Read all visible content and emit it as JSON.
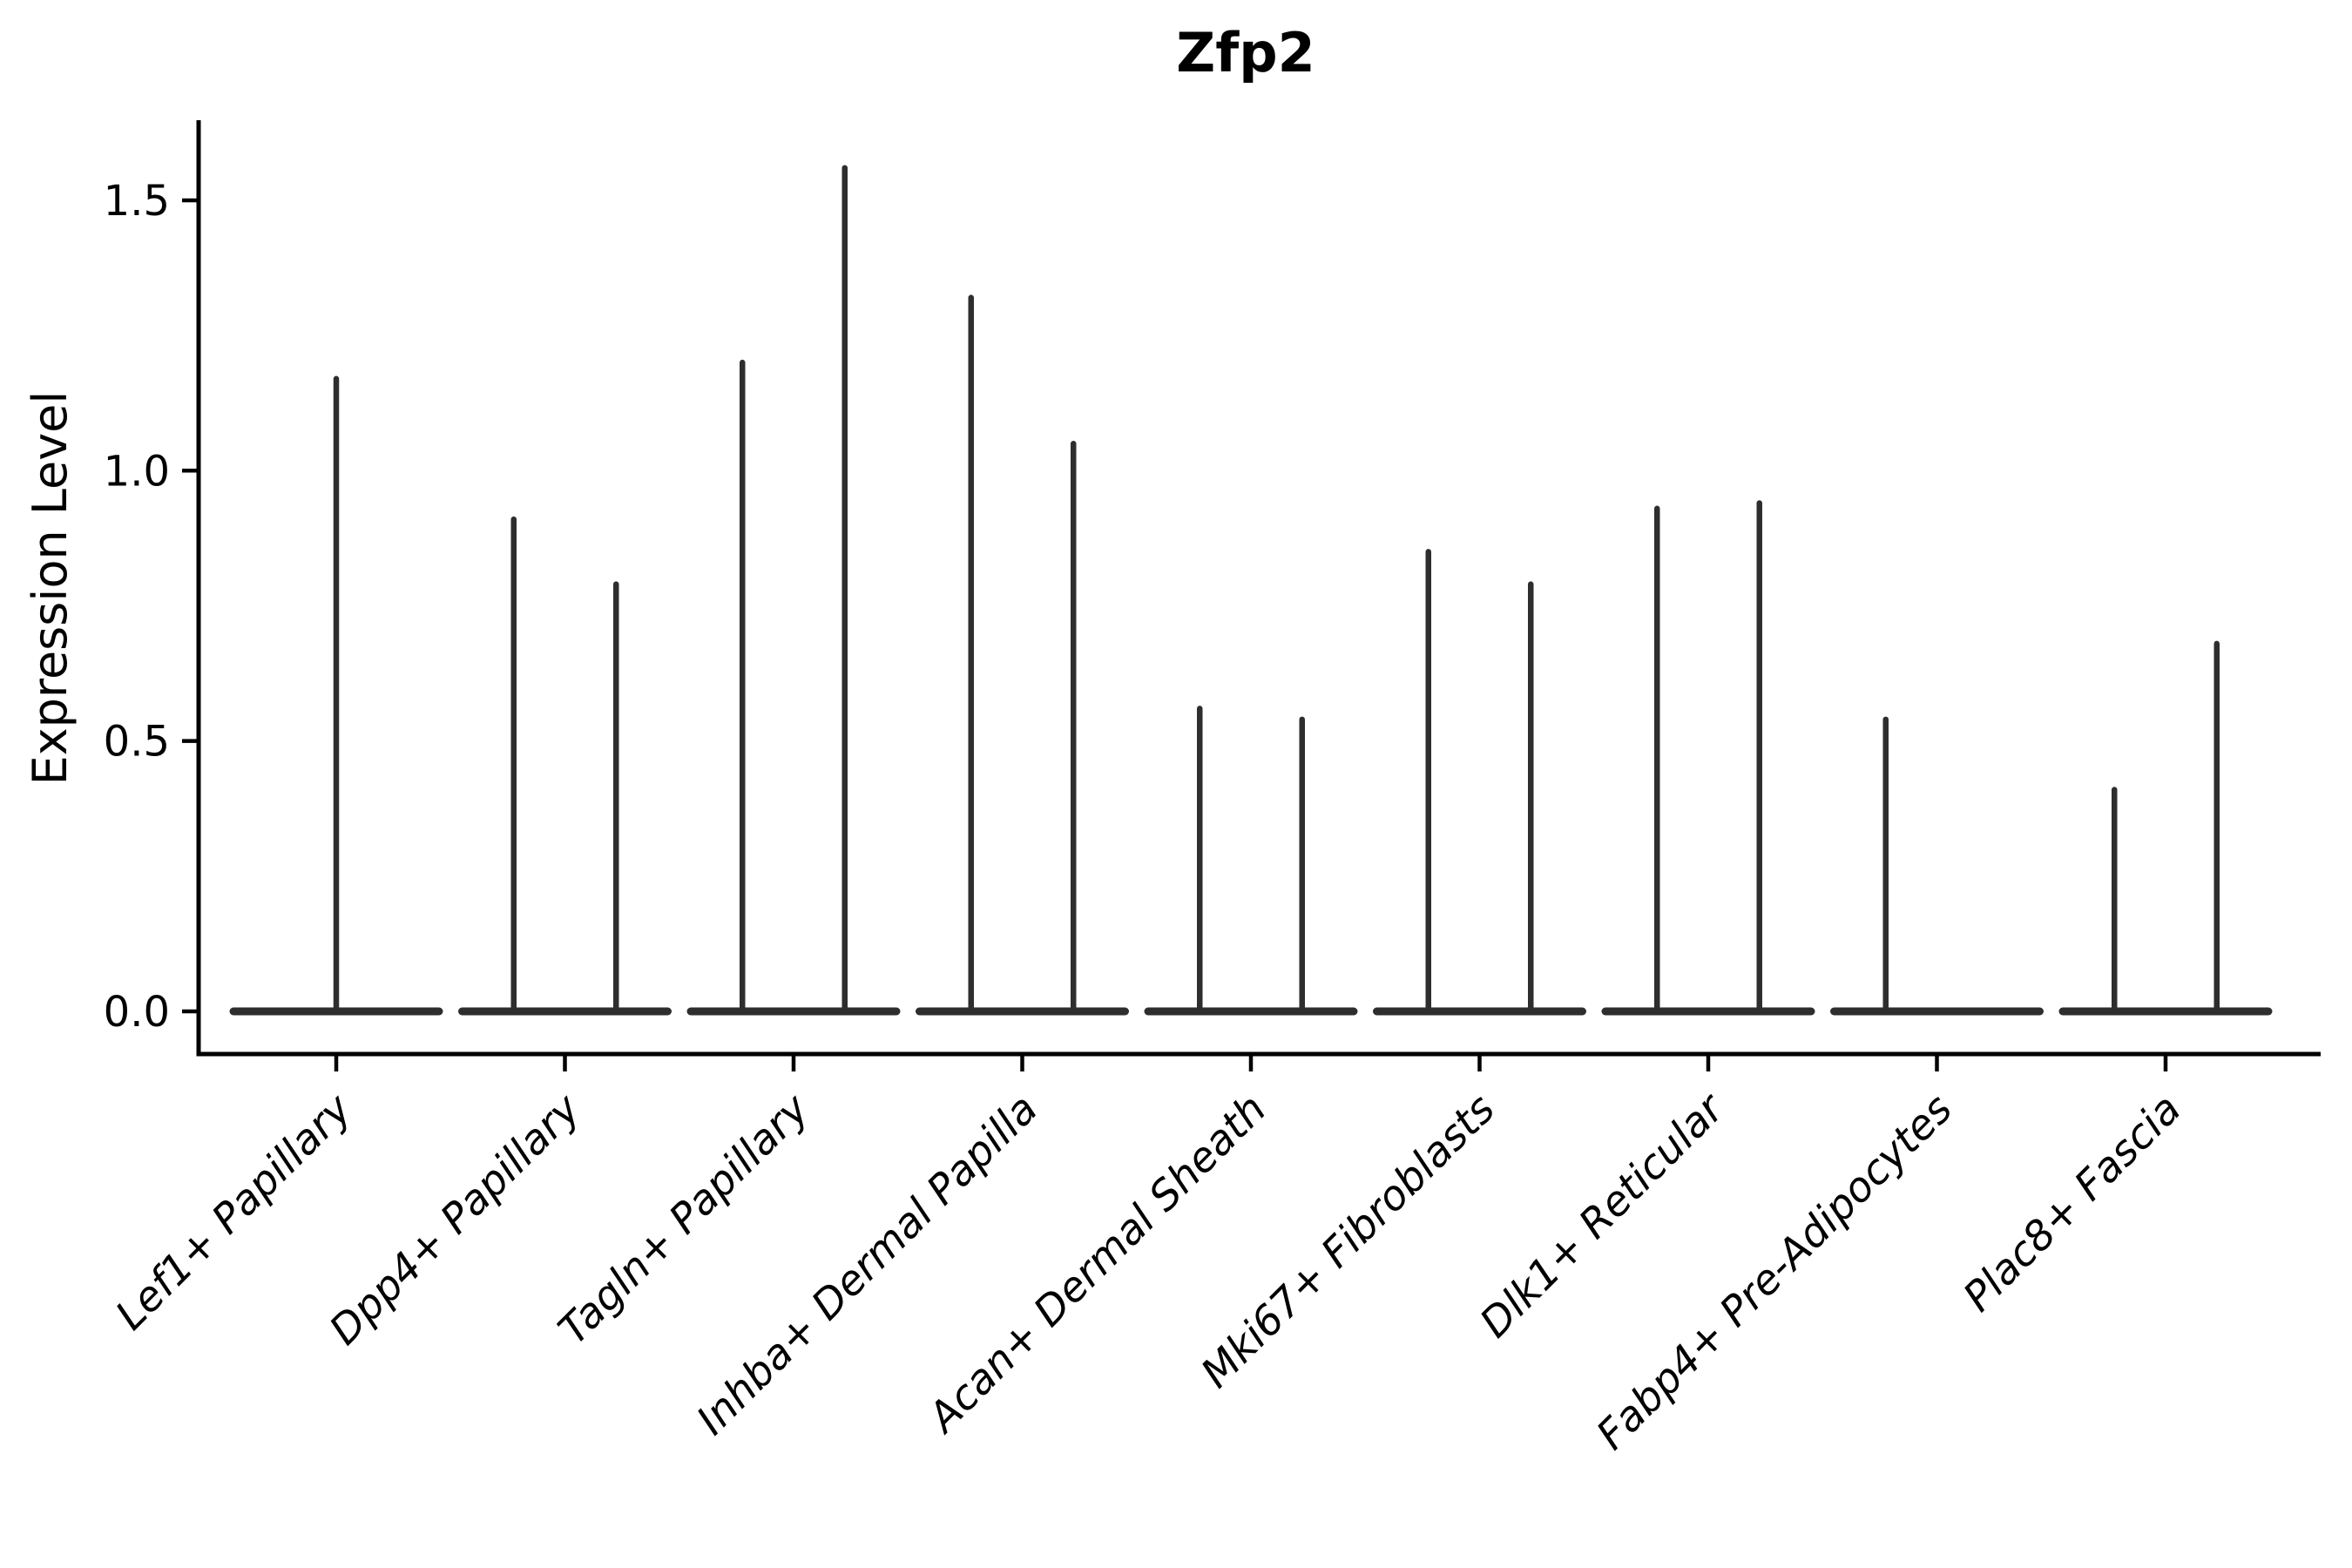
{
  "title": "Zfp2",
  "chart_data": {
    "type": "violin",
    "title": "Zfp2",
    "ylabel": "Expression Level",
    "xlabel": "",
    "ylim": [
      -0.08,
      1.64
    ],
    "yticks": [
      0.0,
      0.5,
      1.0,
      1.5
    ],
    "ytick_labels": [
      "0.0",
      "0.5",
      "1.0",
      "1.5"
    ],
    "grid": false,
    "legend": "none",
    "violin_color": "#2e2e2e",
    "axis_color": "#000000",
    "background_color": "#ffffff",
    "categories": [
      "Lef1+ Papillary",
      "Dpp4+ Papillary",
      "Tagln+ Papillary",
      "Inhba+ Dermal Papilla",
      "Acan+ Dermal Sheath",
      "Mki67+ Fibroblasts",
      "Dlk1+ Reticular",
      "Fabp4+ Pre-Adipocytes",
      "Plac8+ Fascia"
    ],
    "max_expression_per_violin": [
      [
        1.17
      ],
      [
        0.91,
        0.79
      ],
      [
        1.2,
        1.56
      ],
      [
        1.32,
        1.05
      ],
      [
        0.56,
        0.54
      ],
      [
        0.85,
        0.79
      ],
      [
        0.93,
        0.94
      ],
      [
        0.54,
        0.0
      ],
      [
        0.41,
        0.68
      ]
    ],
    "layout_hint": "Each category holds two side-by-side near-zero-width violins (single full-width violin for categories with one entry); violin bodies are flattened at expression 0 with a thin spike up to the listed maximum; x tick labels rotated 45 degrees, italic; only left and bottom spines drawn"
  }
}
